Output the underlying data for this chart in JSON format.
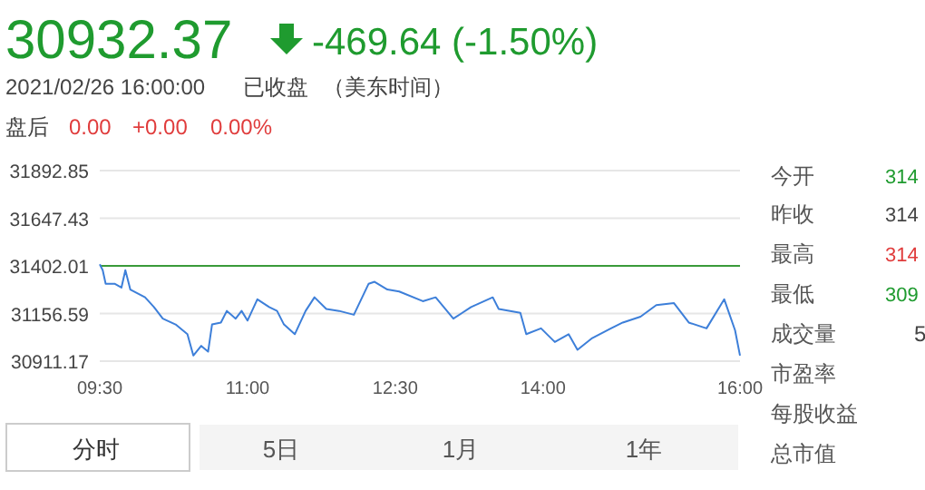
{
  "chart_data": {
    "type": "line",
    "title": "30932.37",
    "subtitle": "-469.64 (-1.50%)",
    "annotations": [
      "2021/02/26 16:00:00",
      "已收盘",
      "（美东时间）",
      "盘后",
      "0.00",
      "+0.00",
      "0.00%",
      "分时",
      "5日",
      "1月",
      "1年",
      "今开",
      "314",
      "昨收",
      "314",
      "最高",
      "314",
      "最低",
      "309",
      "成交量",
      "5",
      "市盈率",
      "每股收益",
      "总市值"
    ],
    "x": [
      9.5,
      9.53,
      9.56,
      9.65,
      9.72,
      9.76,
      9.81,
      9.96,
      10.05,
      10.14,
      10.27,
      10.39,
      10.45,
      10.53,
      10.6,
      10.64,
      10.73,
      10.79,
      10.88,
      10.94,
      11.0,
      11.1,
      11.22,
      11.3,
      11.37,
      11.48,
      11.59,
      11.68,
      11.8,
      11.93,
      12.08,
      12.23,
      12.29,
      12.42,
      12.54,
      12.78,
      12.91,
      13.09,
      13.27,
      13.49,
      13.55,
      13.77,
      13.83,
      13.98,
      14.12,
      14.26,
      14.35,
      14.5,
      14.69,
      14.81,
      14.99,
      15.15,
      15.33,
      15.48,
      15.66,
      15.84,
      15.95,
      16.0
    ],
    "series": [
      {
        "color": "#3d7fd9",
        "values": [
          31410,
          31380,
          31310,
          31310,
          31290,
          31380,
          31280,
          31240,
          31190,
          31130,
          31100,
          31050,
          30940,
          30990,
          30960,
          31100,
          31110,
          31170,
          31130,
          31170,
          31120,
          31230,
          31190,
          31170,
          31100,
          31050,
          31170,
          31240,
          31180,
          31170,
          31150,
          31310,
          31320,
          31280,
          31270,
          31220,
          31240,
          31130,
          31190,
          31240,
          31180,
          31160,
          31050,
          31080,
          31010,
          31050,
          30970,
          31030,
          31080,
          31110,
          31140,
          31200,
          31210,
          31110,
          31080,
          31230,
          31070,
          30940
        ]
      }
    ],
    "xlim": [
      9.5,
      16
    ],
    "xticks": [
      {
        "value": 9.5,
        "label": "09:30"
      },
      {
        "value": 11,
        "label": "11:00"
      },
      {
        "value": 12.5,
        "label": "12:30"
      },
      {
        "value": 14,
        "label": "14:00"
      },
      {
        "value": 16,
        "label": "16:00"
      }
    ],
    "ylim": [
      30911.17,
      31892.85
    ],
    "yticks": [
      31892.85,
      31647.43,
      31402.01,
      31156.59,
      30911.17
    ],
    "grid": "y",
    "ref_lines": [
      {
        "axis": "y",
        "value": 31402.01,
        "color": "#3a9a3a"
      }
    ]
  }
}
